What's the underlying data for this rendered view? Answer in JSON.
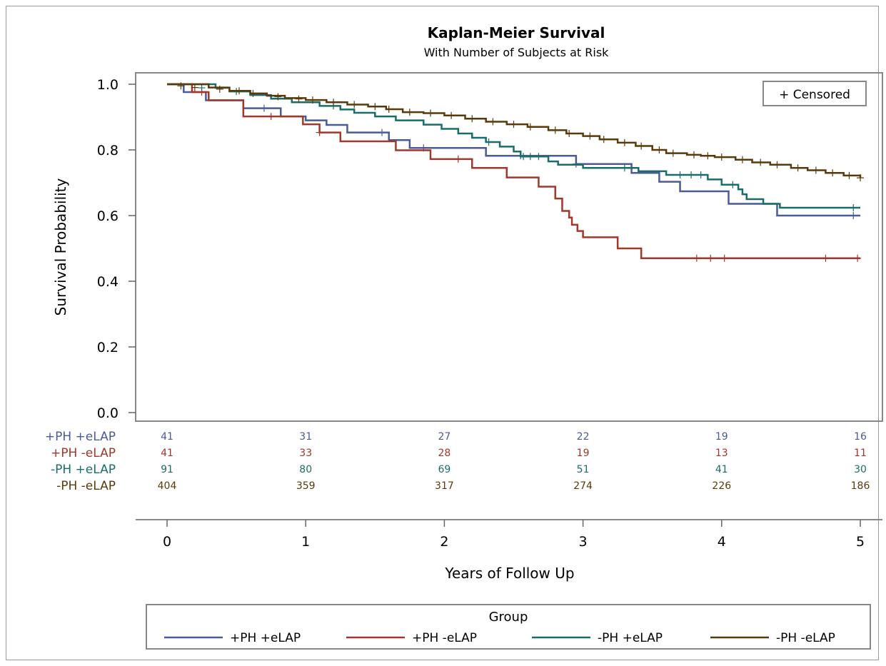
{
  "chart_data": {
    "type": "line",
    "step": true,
    "title": "Kaplan-Meier Survival",
    "subtitle": "With Number of Subjects at Risk",
    "xlabel": "Years of Follow Up",
    "ylabel": "Survival Probability",
    "xlim": [
      0,
      5
    ],
    "ylim": [
      0,
      1.0
    ],
    "x_ticks": [
      "0",
      "1",
      "2",
      "3",
      "4",
      "5"
    ],
    "y_ticks": [
      "0.0",
      "0.2",
      "0.4",
      "0.6",
      "0.8",
      "1.0"
    ],
    "grid": false,
    "inset_legend": "+ Censored",
    "legend_title": "Group",
    "legend_position": "bottom",
    "at_risk_times": [
      0,
      1,
      2,
      3,
      4,
      5
    ],
    "series": [
      {
        "name": "+PH +eLAP",
        "color": "#4a5a9a",
        "at_risk": [
          "41",
          "31",
          "27",
          "22",
          "19",
          "16"
        ],
        "steps": [
          [
            0,
            1.0
          ],
          [
            0.12,
            0.976
          ],
          [
            0.28,
            0.951
          ],
          [
            0.55,
            0.927
          ],
          [
            0.82,
            0.902
          ],
          [
            1.0,
            0.89
          ],
          [
            1.15,
            0.876
          ],
          [
            1.3,
            0.853
          ],
          [
            1.6,
            0.83
          ],
          [
            1.75,
            0.806
          ],
          [
            2.3,
            0.782
          ],
          [
            2.5,
            0.782
          ],
          [
            2.95,
            0.757
          ],
          [
            3.05,
            0.757
          ],
          [
            3.05,
            0.757
          ],
          [
            3.2,
            0.757
          ],
          [
            3.35,
            0.73
          ],
          [
            3.5,
            0.73
          ],
          [
            3.55,
            0.703
          ],
          [
            3.7,
            0.674
          ],
          [
            4.05,
            0.636
          ],
          [
            4.2,
            0.636
          ],
          [
            4.4,
            0.6
          ],
          [
            4.5,
            0.6
          ],
          [
            5,
            0.6
          ]
        ],
        "censored": [
          [
            0.7,
            0.927
          ],
          [
            1.55,
            0.853
          ],
          [
            1.85,
            0.806
          ],
          [
            2.55,
            0.782
          ],
          [
            2.95,
            0.757
          ],
          [
            4.95,
            0.6
          ]
        ]
      },
      {
        "name": "+PH -eLAP",
        "color": "#a2372b",
        "at_risk": [
          "41",
          "33",
          "28",
          "19",
          "13",
          "11"
        ],
        "steps": [
          [
            0,
            1.0
          ],
          [
            0.18,
            0.976
          ],
          [
            0.3,
            0.951
          ],
          [
            0.55,
            0.902
          ],
          [
            0.98,
            0.878
          ],
          [
            1.1,
            0.853
          ],
          [
            1.25,
            0.826
          ],
          [
            1.65,
            0.799
          ],
          [
            1.9,
            0.772
          ],
          [
            2.2,
            0.745
          ],
          [
            2.45,
            0.716
          ],
          [
            2.68,
            0.688
          ],
          [
            2.8,
            0.652
          ],
          [
            2.85,
            0.614
          ],
          [
            2.9,
            0.594
          ],
          [
            2.92,
            0.572
          ],
          [
            2.96,
            0.553
          ],
          [
            3.0,
            0.534
          ],
          [
            3.2,
            0.534
          ],
          [
            3.25,
            0.5
          ],
          [
            3.42,
            0.47
          ],
          [
            5,
            0.47
          ]
        ],
        "censored": [
          [
            0.25,
            0.976
          ],
          [
            0.75,
            0.902
          ],
          [
            1.1,
            0.853
          ],
          [
            2.1,
            0.772
          ],
          [
            3.82,
            0.47
          ],
          [
            3.92,
            0.47
          ],
          [
            4.02,
            0.47
          ],
          [
            4.75,
            0.47
          ],
          [
            4.98,
            0.47
          ]
        ]
      },
      {
        "name": "-PH +eLAP",
        "color": "#1a6e6a",
        "at_risk": [
          "91",
          "80",
          "69",
          "51",
          "41",
          "30"
        ],
        "steps": [
          [
            0,
            1.0
          ],
          [
            0.35,
            0.989
          ],
          [
            0.45,
            0.978
          ],
          [
            0.6,
            0.967
          ],
          [
            0.75,
            0.956
          ],
          [
            0.9,
            0.945
          ],
          [
            1.1,
            0.934
          ],
          [
            1.25,
            0.923
          ],
          [
            1.35,
            0.913
          ],
          [
            1.5,
            0.902
          ],
          [
            1.65,
            0.89
          ],
          [
            1.85,
            0.877
          ],
          [
            1.98,
            0.864
          ],
          [
            2.1,
            0.85
          ],
          [
            2.2,
            0.837
          ],
          [
            2.3,
            0.824
          ],
          [
            2.4,
            0.81
          ],
          [
            2.5,
            0.795
          ],
          [
            2.55,
            0.78
          ],
          [
            2.7,
            0.78
          ],
          [
            2.75,
            0.765
          ],
          [
            2.82,
            0.755
          ],
          [
            3.0,
            0.745
          ],
          [
            3.2,
            0.745
          ],
          [
            3.4,
            0.735
          ],
          [
            3.6,
            0.724
          ],
          [
            3.9,
            0.71
          ],
          [
            4.0,
            0.694
          ],
          [
            4.12,
            0.68
          ],
          [
            4.15,
            0.665
          ],
          [
            4.18,
            0.65
          ],
          [
            4.3,
            0.636
          ],
          [
            4.42,
            0.624
          ],
          [
            4.55,
            0.624
          ],
          [
            5,
            0.624
          ]
        ],
        "censored": [
          [
            0.25,
            0.989
          ],
          [
            0.5,
            0.978
          ],
          [
            1.2,
            0.934
          ],
          [
            2.32,
            0.824
          ],
          [
            2.57,
            0.78
          ],
          [
            2.62,
            0.78
          ],
          [
            2.68,
            0.78
          ],
          [
            3.3,
            0.745
          ],
          [
            3.7,
            0.724
          ],
          [
            3.78,
            0.724
          ],
          [
            3.85,
            0.724
          ],
          [
            4.08,
            0.694
          ],
          [
            4.95,
            0.624
          ]
        ]
      },
      {
        "name": "-PH -eLAP",
        "color": "#5a3a0a",
        "at_risk": [
          "404",
          "359",
          "317",
          "274",
          "226",
          "186"
        ],
        "steps": [
          [
            0,
            1.0
          ],
          [
            0.3,
            0.99
          ],
          [
            0.45,
            0.98
          ],
          [
            0.6,
            0.972
          ],
          [
            0.72,
            0.965
          ],
          [
            0.85,
            0.958
          ],
          [
            1.0,
            0.952
          ],
          [
            1.15,
            0.945
          ],
          [
            1.3,
            0.938
          ],
          [
            1.45,
            0.932
          ],
          [
            1.58,
            0.924
          ],
          [
            1.7,
            0.915
          ],
          [
            1.85,
            0.912
          ],
          [
            2.0,
            0.905
          ],
          [
            2.15,
            0.895
          ],
          [
            2.3,
            0.886
          ],
          [
            2.45,
            0.878
          ],
          [
            2.6,
            0.87
          ],
          [
            2.75,
            0.86
          ],
          [
            2.88,
            0.85
          ],
          [
            3.0,
            0.842
          ],
          [
            3.12,
            0.832
          ],
          [
            3.25,
            0.822
          ],
          [
            3.38,
            0.812
          ],
          [
            3.5,
            0.8
          ],
          [
            3.6,
            0.79
          ],
          [
            3.75,
            0.785
          ],
          [
            3.85,
            0.782
          ],
          [
            3.95,
            0.778
          ],
          [
            4.1,
            0.77
          ],
          [
            4.22,
            0.762
          ],
          [
            4.35,
            0.755
          ],
          [
            4.5,
            0.745
          ],
          [
            4.62,
            0.738
          ],
          [
            4.75,
            0.73
          ],
          [
            4.88,
            0.722
          ],
          [
            5,
            0.715
          ]
        ],
        "censored": [
          [
            0.1,
            0.995
          ],
          [
            0.2,
            0.99
          ],
          [
            0.38,
            0.985
          ],
          [
            0.52,
            0.98
          ],
          [
            0.62,
            0.972
          ],
          [
            0.8,
            0.962
          ],
          [
            0.95,
            0.955
          ],
          [
            1.05,
            0.952
          ],
          [
            1.2,
            0.945
          ],
          [
            1.35,
            0.938
          ],
          [
            1.5,
            0.932
          ],
          [
            1.6,
            0.924
          ],
          [
            1.75,
            0.915
          ],
          [
            1.9,
            0.912
          ],
          [
            2.05,
            0.905
          ],
          [
            2.2,
            0.895
          ],
          [
            2.35,
            0.886
          ],
          [
            2.5,
            0.878
          ],
          [
            2.62,
            0.87
          ],
          [
            2.8,
            0.86
          ],
          [
            2.9,
            0.85
          ],
          [
            3.05,
            0.842
          ],
          [
            3.15,
            0.832
          ],
          [
            3.3,
            0.822
          ],
          [
            3.42,
            0.812
          ],
          [
            3.55,
            0.8
          ],
          [
            3.65,
            0.79
          ],
          [
            3.8,
            0.785
          ],
          [
            3.9,
            0.782
          ],
          [
            4.0,
            0.778
          ],
          [
            4.15,
            0.77
          ],
          [
            4.28,
            0.762
          ],
          [
            4.4,
            0.755
          ],
          [
            4.55,
            0.745
          ],
          [
            4.68,
            0.738
          ],
          [
            4.8,
            0.73
          ],
          [
            4.92,
            0.722
          ],
          [
            5.0,
            0.715
          ]
        ]
      }
    ]
  }
}
